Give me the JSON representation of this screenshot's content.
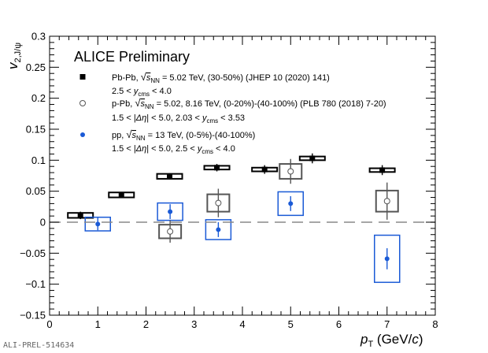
{
  "chart_data": {
    "type": "scatter",
    "title": "ALICE Preliminary",
    "xlabel": "p_T (GeV/c)",
    "ylabel": "v_2,J/ψ",
    "xlim": [
      0,
      8
    ],
    "ylim": [
      -0.15,
      0.3
    ],
    "x_ticks": [
      "0",
      "1",
      "2",
      "3",
      "4",
      "5",
      "6",
      "7",
      "8"
    ],
    "y_ticks": [
      "−0.15",
      "−0.1",
      "−0.05",
      "0",
      "0.05",
      "0.1",
      "0.15",
      "0.2",
      "0.25",
      "0.3"
    ],
    "zero_line": "dashed",
    "series": [
      {
        "name": "Pb-Pb, √s_NN = 5.02 TeV, (30-50%) (JHEP 10 (2020) 141)",
        "marker": "filled-square",
        "color": "#000000",
        "points": [
          {
            "x": 0.64,
            "y": 0.011,
            "stat": 0.006,
            "sys": 0.004
          },
          {
            "x": 1.49,
            "y": 0.044,
            "stat": 0.004,
            "sys": 0.004
          },
          {
            "x": 2.49,
            "y": 0.074,
            "stat": 0.005,
            "sys": 0.004
          },
          {
            "x": 3.47,
            "y": 0.088,
            "stat": 0.006,
            "sys": 0.003
          },
          {
            "x": 4.46,
            "y": 0.085,
            "stat": 0.007,
            "sys": 0.003
          },
          {
            "x": 5.45,
            "y": 0.103,
            "stat": 0.008,
            "sys": 0.003
          },
          {
            "x": 6.9,
            "y": 0.084,
            "stat": 0.008,
            "sys": 0.003
          }
        ]
      },
      {
        "name": "p-Pb, √s_NN = 5.02, 8.16 TeV, (0-20%)-(40-100%) (PLB 780 (2018) 7-20)",
        "marker": "open-circle",
        "color": "#555555",
        "points": [
          {
            "x": 2.5,
            "y": -0.015,
            "stat": 0.018,
            "sys": 0.011
          },
          {
            "x": 3.5,
            "y": 0.031,
            "stat": 0.023,
            "sys": 0.014
          },
          {
            "x": 5.0,
            "y": 0.082,
            "stat": 0.02,
            "sys": 0.012
          },
          {
            "x": 7.0,
            "y": 0.034,
            "stat": 0.03,
            "sys": 0.017
          }
        ]
      },
      {
        "name": "pp, √s_NN = 13 TeV, (0-5%)-(40-100%)",
        "marker": "filled-circle",
        "color": "#1a5ad6",
        "points": [
          {
            "x": 1.0,
            "y": -0.003,
            "stat": 0.01,
            "sys": 0.011
          },
          {
            "x": 2.5,
            "y": 0.017,
            "stat": 0.012,
            "sys": 0.014
          },
          {
            "x": 3.5,
            "y": -0.012,
            "stat": 0.012,
            "sys": 0.016
          },
          {
            "x": 5.0,
            "y": 0.03,
            "stat": 0.012,
            "sys": 0.019
          },
          {
            "x": 7.0,
            "y": -0.059,
            "stat": 0.017,
            "sys": 0.038
          }
        ]
      }
    ],
    "legend": {
      "placement": "top-left",
      "entries": [
        {
          "symbol": "filled-square",
          "line1": "Pb-Pb, √s_NN = 5.02 TeV, (30-50%) (JHEP 10 (2020) 141)",
          "line2": "2.5 < y_cms < 4.0"
        },
        {
          "symbol": "open-circle",
          "line1": "p-Pb, √s_NN = 5.02, 8.16 TeV, (0-20%)-(40-100%) (PLB 780 (2018) 7-20)",
          "line2": "1.5 < |Δη| < 5.0, 2.03 < y_cms < 3.53"
        },
        {
          "symbol": "filled-circle",
          "line1": "pp, √s_NN = 13 TeV, (0-5%)-(40-100%)",
          "line2": "1.5 < |Δη| < 5.0, 2.5 < y_cms < 4.0"
        }
      ]
    }
  },
  "legend_text": {
    "pbpb_prefix": "Pb-Pb, ",
    "pbpb_suffix": " = 5.02 TeV, (30-50%) (JHEP 10 (2020) 141)",
    "pbpb_line2_a": "2.5 < ",
    "pbpb_line2_b": " < 4.0",
    "ppb_prefix": "p-Pb, ",
    "ppb_suffix": " = 5.02, 8.16 TeV, (0-20%)-(40-100%) (PLB 780 (2018) 7-20)",
    "ppb_line2_a": "1.5 < |",
    "ppb_line2_b": "| < 5.0, 2.03 < ",
    "ppb_line2_c": " < 3.53",
    "pp_prefix": "pp, ",
    "pp_suffix": " = 13 TeV, (0-5%)-(40-100%)",
    "pp_line2_a": "1.5 < |",
    "pp_line2_b": "| < 5.0, 2.5 < ",
    "pp_line2_c": " < 4.0",
    "s": "s",
    "nn": "NN",
    "y": "y",
    "cms": "cms",
    "deta": "Δη"
  },
  "axis_text": {
    "ylabel_main": "v",
    "ylabel_sub": "2,J/ψ",
    "xlabel_p": "p",
    "xlabel_t": "T",
    "xlabel_rest": " (GeV/",
    "xlabel_c": "c",
    "xlabel_close": ")"
  },
  "footer_id": "ALI-PREL-514634"
}
